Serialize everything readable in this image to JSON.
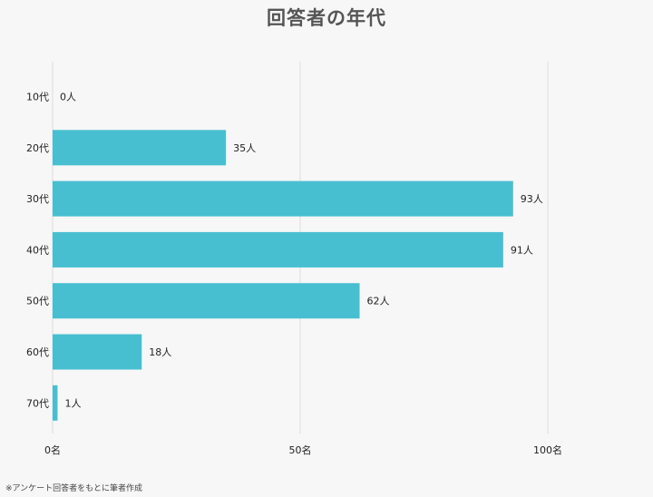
{
  "chart_data": {
    "type": "bar",
    "orientation": "horizontal",
    "title": "回答者の年代",
    "categories": [
      "10代",
      "20代",
      "30代",
      "40代",
      "50代",
      "60代",
      "70代"
    ],
    "values": [
      0,
      35,
      93,
      91,
      62,
      18,
      1
    ],
    "data_labels": [
      "0人",
      "35人",
      "93人",
      "91人",
      "62人",
      "18人",
      "1人"
    ],
    "xlim": [
      0,
      100
    ],
    "x_ticks": [
      0,
      50,
      100
    ],
    "x_tick_labels": [
      "0名",
      "50名",
      "100名"
    ],
    "xlabel": "",
    "ylabel": "",
    "bar_color": "#48bfd1",
    "grid": true,
    "legend": "none"
  },
  "footnote": "※アンケート回答者をもとに筆者作成"
}
